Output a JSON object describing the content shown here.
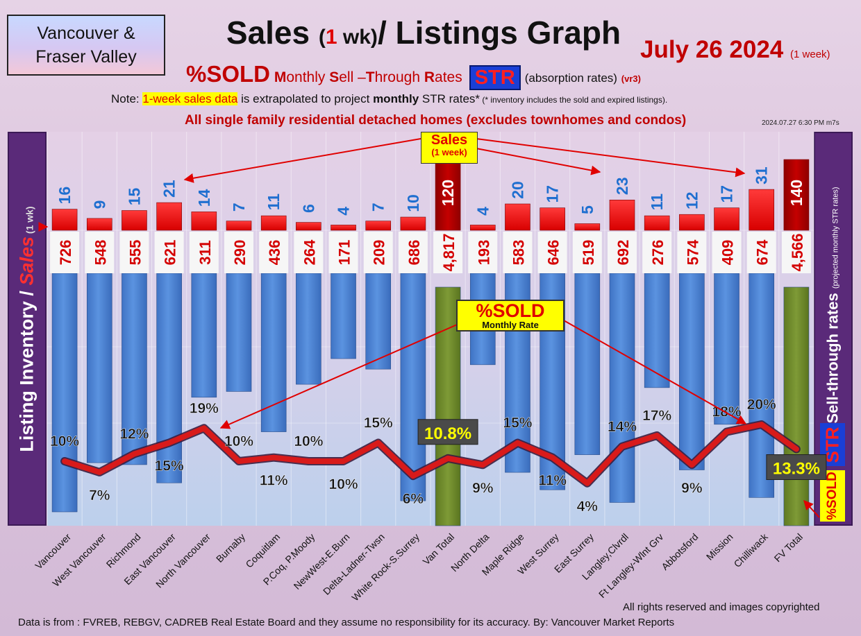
{
  "header": {
    "region_line1": "Vancouver &",
    "region_line2": "Fraser Valley",
    "title_a": "Sales",
    "title_b": "(",
    "title_c": "1",
    "title_d": " wk)",
    "title_e": "/ Listings Graph",
    "date": "July 26  2024",
    "date_note": "(1 week)",
    "sub_pct": "%SOLD",
    "sub_words": [
      {
        "cap": "M",
        "rest": "onthly "
      },
      {
        "cap": "S",
        "rest": "ell –"
      },
      {
        "cap": "T",
        "rest": "hrough "
      },
      {
        "cap": "R",
        "rest": "ates"
      }
    ],
    "str_badge": "STR",
    "abs_text": "(absorption rates)",
    "version": "(vr3)",
    "note_prefix": "Note: ",
    "note_highlight": "1-week sales data",
    "note_mid": " is extrapolated to project ",
    "note_bold": "monthly",
    "note_end": " STR rates*",
    "note_small": " (* inventory includes the sold and expired listings).",
    "scope": "All single family residential detached homes (excludes townhomes and condos)",
    "timestamp": "2024.07.27 6:30 PM m7s"
  },
  "side_labels": {
    "left_main": "Listing Inventory ",
    "left_slash": "/",
    "left_sales": " Sales",
    "left_small": " (1 wk)",
    "right_main": "Sell-through rates ",
    "right_small": "(projected monthly STR rates)",
    "right_str": "STR",
    "right_sold": "%SOLD"
  },
  "callouts": {
    "sales_title": "Sales",
    "sales_sub": "(1 week)",
    "sold_title": "%SOLD",
    "sold_sub": "Monthly Rate"
  },
  "footer": {
    "rights": "All rights reserved and  images copyrighted",
    "source": "Data is from : FVREB, REBGV, CADREB Real Estate Board and they assume no responsibility for its accuracy. By: Vancouver Market Reports"
  },
  "colors": {
    "inventory_bar": "#4f86d6",
    "total_bar": "#6f8a2c",
    "sales_bar": "#ff1a1a",
    "total_sales_bar": "#b80000",
    "sales_label": "#1f6fd0",
    "inventory_label": "#d40000",
    "str_line": "#d81a1a",
    "panel": "#5a2a79"
  },
  "chart_data": {
    "type": "bar",
    "categories": [
      "Vancouver",
      "West Vancouver",
      "Richmond",
      "East Vancouver",
      "North Vancouver",
      "Burnaby",
      "Coquitlam",
      "P.Coq, P.Moody",
      "NewWest-E.Burn",
      "Delta-Ladner-Twsn",
      "White Rock-S.Surrey",
      "Van Total",
      "North Delta",
      "Maple Ridge",
      "West Surrey",
      "East Surrey",
      "Langley,Clvrdl",
      "Ft Langley-Wlnt Grv",
      "Abbotsford",
      "Mission",
      "Chilliwack",
      "FV Total"
    ],
    "inventory": [
      726,
      548,
      555,
      621,
      311,
      290,
      436,
      264,
      171,
      209,
      686,
      4817,
      193,
      583,
      646,
      519,
      692,
      276,
      574,
      409,
      674,
      4566
    ],
    "inventory_labels": [
      "726",
      "548",
      "555",
      "621",
      "311",
      "290",
      "436",
      "264",
      "171",
      "209",
      "686",
      "4,817",
      "193",
      "583",
      "646",
      "519",
      "692",
      "276",
      "574",
      "409",
      "674",
      "4,566"
    ],
    "sales_1wk": [
      16,
      9,
      15,
      21,
      14,
      7,
      11,
      6,
      4,
      7,
      10,
      120,
      4,
      20,
      17,
      5,
      23,
      11,
      12,
      17,
      31,
      140
    ],
    "str_percent": [
      10,
      7,
      12,
      15,
      19,
      10,
      11,
      10,
      10,
      15,
      6,
      10.8,
      9,
      15,
      11,
      4,
      14,
      17,
      9,
      18,
      20,
      13.3
    ],
    "str_labels": [
      "10%",
      "7%",
      "12%",
      "15%",
      "19%",
      "10%",
      "11%",
      "10%",
      "10%",
      "15%",
      "6%",
      "10.8%",
      "9%",
      "15%",
      "11%",
      "4%",
      "14%",
      "17%",
      "9%",
      "18%",
      "20%",
      "13.3%"
    ],
    "totals": [
      "Van Total",
      "FV Total"
    ]
  }
}
